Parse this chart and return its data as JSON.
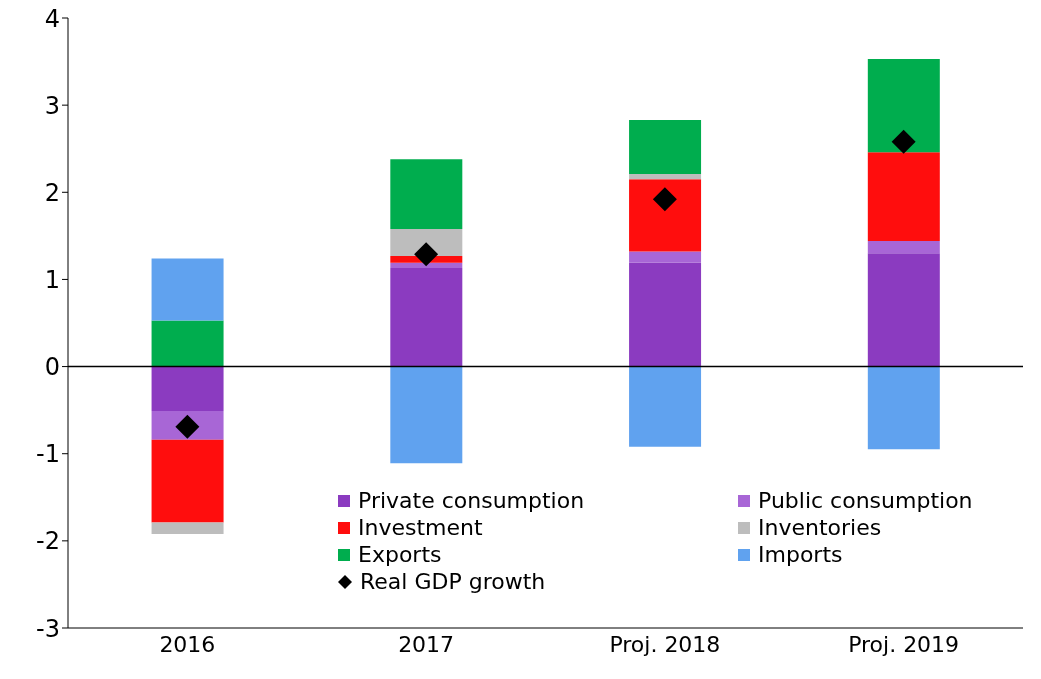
{
  "chart_data": {
    "type": "bar",
    "stacked": true,
    "categories": [
      "2016",
      "2017",
      "Proj. 2018",
      "Proj. 2019"
    ],
    "series": [
      {
        "name": "Private consumption",
        "color": "#8b3bc0",
        "values": [
          -0.51,
          1.13,
          1.19,
          1.3
        ]
      },
      {
        "name": "Public consumption",
        "color": "#a866d6",
        "values": [
          -0.33,
          0.06,
          0.13,
          0.14
        ]
      },
      {
        "name": "Investment",
        "color": "#ff0d0d",
        "values": [
          -0.95,
          0.08,
          0.83,
          1.02
        ]
      },
      {
        "name": "Inventories",
        "color": "#bdbdbd",
        "values": [
          -0.13,
          0.31,
          0.06,
          0
        ]
      },
      {
        "name": "Exports",
        "color": "#00ad4e",
        "values": [
          0.53,
          0.8,
          0.62,
          1.07
        ]
      },
      {
        "name": "Imports",
        "color": "#60a2ef",
        "values": [
          0.71,
          -1.11,
          -0.92,
          -0.95
        ]
      },
      {
        "name": "Real GDP growth",
        "type": "scatter",
        "marker": "diamond",
        "color": "#000000",
        "values": [
          -0.69,
          1.29,
          1.92,
          2.58
        ]
      }
    ],
    "ylim": [
      -3,
      4
    ],
    "yticks": [
      -3,
      -2,
      -1,
      0,
      1,
      2,
      3,
      4
    ],
    "grid": false,
    "legend": "bottom",
    "ref_lines": [
      {
        "axis": "y",
        "value": 0,
        "color": "#000000"
      }
    ]
  }
}
